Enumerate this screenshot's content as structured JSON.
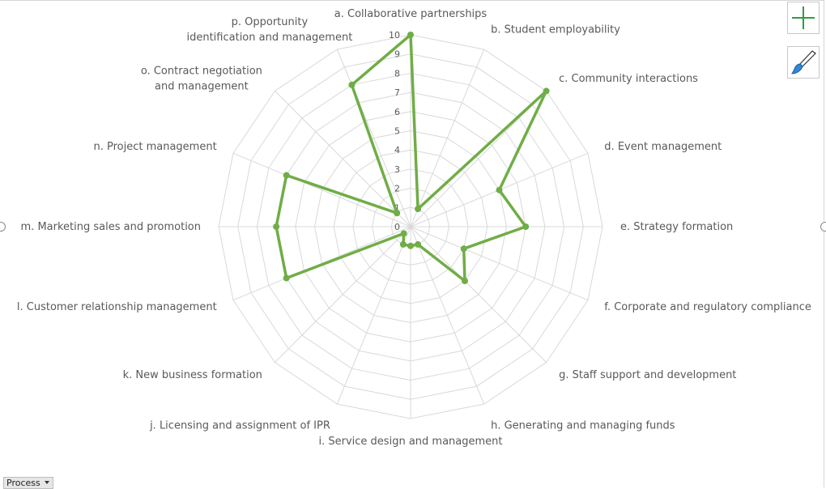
{
  "chart_data": {
    "type": "radar",
    "categories": [
      "a. Collaborative partnerships",
      "b. Student employability",
      "c. Community interactions",
      "d. Event management",
      "e. Strategy formation",
      "f. Corporate and regulatory compliance",
      "g. Staff support and development",
      "h. Generating and managing funds",
      "i. Service design and management",
      "j. Licensing and assignment of IPR",
      "k. New business formation",
      "l. Customer relationship management",
      "m. Marketing sales and promotion",
      "n. Project management",
      "o. Contract negotiation and management",
      "p. Opportunity identification and management"
    ],
    "series": [
      {
        "values": [
          10,
          1,
          10,
          5,
          6,
          3,
          4,
          1,
          1,
          1,
          0.5,
          7,
          7,
          7,
          1,
          8
        ]
      }
    ],
    "rlim": [
      0,
      10
    ],
    "ticks": [
      "0",
      "1",
      "2",
      "3",
      "4",
      "5",
      "6",
      "7",
      "8",
      "9",
      "10"
    ],
    "line_color": "#70ad47",
    "grid_color": "#d9d9d9",
    "grid": true
  },
  "ui": {
    "filter_button_label": "Process",
    "add_icon": "plus-icon",
    "style_icon": "paintbrush-icon"
  }
}
